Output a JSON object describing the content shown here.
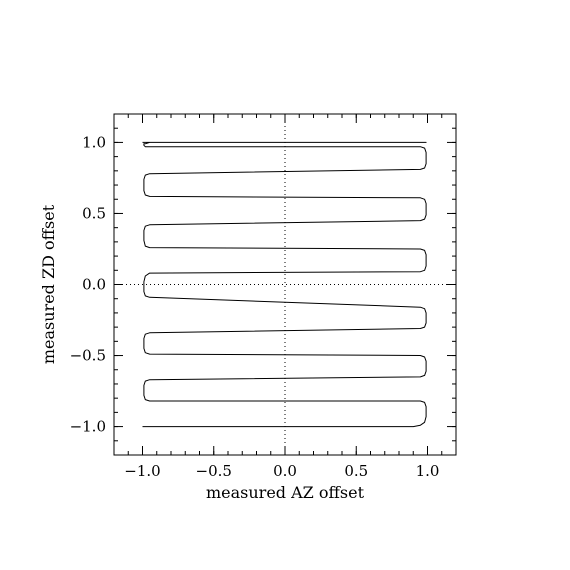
{
  "chart_data": {
    "type": "line",
    "title": "",
    "xlabel": "measured AZ offset",
    "ylabel": "measured ZD offset",
    "xlim": [
      -1.2,
      1.2
    ],
    "ylim": [
      -1.2,
      1.2
    ],
    "xticks": [
      -1.0,
      -0.5,
      0.0,
      0.5,
      1.0
    ],
    "yticks": [
      -1.0,
      -0.5,
      0.0,
      0.5,
      1.0
    ],
    "xtick_labels": [
      "−1.0",
      "−0.5",
      "0.0",
      "0.5",
      "1.0"
    ],
    "ytick_labels": [
      "−1.0",
      "−0.5",
      "0.0",
      "0.5",
      "1.0"
    ],
    "minor_tick_step": 0.1,
    "grid": false,
    "reference_lines": {
      "x": 0.0,
      "y": 0.0,
      "style": "dotted"
    },
    "series": [
      {
        "x": [
          -1.0,
          0.9,
          0.95,
          0.98,
          0.99,
          0.99,
          0.98,
          0.95,
          -0.95,
          -0.98,
          -0.99,
          -0.99,
          -0.98,
          -0.95,
          0.95,
          0.98,
          0.99,
          0.99,
          0.98,
          0.95,
          -0.95,
          -0.98,
          -0.99,
          -0.99,
          -0.98,
          -0.95,
          0.95,
          0.98,
          0.99,
          0.99,
          0.98,
          0.95,
          -0.95,
          -0.98,
          -0.99,
          -0.99,
          -0.98,
          -0.95,
          0.95,
          0.98,
          0.99,
          0.99,
          0.98,
          0.95,
          -0.95,
          -0.98,
          -0.99,
          -0.99,
          -0.98,
          -0.95,
          0.95,
          0.98,
          0.99,
          0.99,
          0.98,
          0.95,
          -0.95,
          -0.98,
          -0.99,
          -0.99,
          -0.98,
          -0.95,
          0.95,
          0.98,
          0.99,
          0.99,
          0.98,
          0.95,
          -0.95,
          -0.98,
          -0.99,
          -0.99,
          -0.98,
          -0.95,
          0.95,
          0.98,
          0.99,
          0.99,
          0.98,
          0.95,
          -0.95,
          -0.98,
          -0.99,
          -0.99,
          -0.98,
          -0.96,
          -0.98,
          -0.99,
          -1.0
        ],
        "y": [
          -1.0,
          -1.0,
          -0.99,
          -0.97,
          -0.93,
          -0.86,
          -0.83,
          -0.82,
          -0.82,
          -0.81,
          -0.78,
          -0.71,
          -0.68,
          -0.67,
          -0.65,
          -0.64,
          -0.61,
          -0.54,
          -0.51,
          -0.5,
          -0.49,
          -0.48,
          -0.45,
          -0.38,
          -0.35,
          -0.34,
          -0.31,
          -0.3,
          -0.27,
          -0.2,
          -0.17,
          -0.16,
          -0.09,
          -0.08,
          -0.05,
          0.02,
          0.06,
          0.08,
          0.09,
          0.1,
          0.13,
          0.21,
          0.24,
          0.25,
          0.26,
          0.27,
          0.31,
          0.38,
          0.41,
          0.42,
          0.45,
          0.46,
          0.49,
          0.57,
          0.6,
          0.61,
          0.62,
          0.63,
          0.66,
          0.74,
          0.77,
          0.78,
          0.81,
          0.82,
          0.85,
          0.93,
          0.96,
          0.97,
          0.97,
          0.97,
          0.98,
          0.99,
          0.99,
          1.0,
          1.0,
          1.0,
          1.0,
          1.0,
          1.0,
          1.0,
          1.0,
          1.0,
          1.0,
          1.0,
          1.0,
          1.0,
          1.0,
          1.0,
          1.0
        ]
      }
    ]
  }
}
